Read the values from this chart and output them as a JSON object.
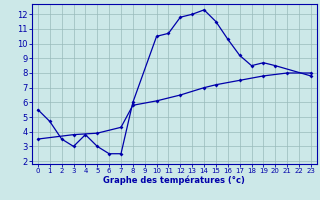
{
  "xlabel": "Graphe des températures (°c)",
  "bg_color": "#cce8e8",
  "line_color": "#0000aa",
  "grid_color": "#99bbbb",
  "xlim": [
    -0.5,
    23.5
  ],
  "ylim": [
    1.8,
    12.7
  ],
  "xticks": [
    0,
    1,
    2,
    3,
    4,
    5,
    6,
    7,
    8,
    9,
    10,
    11,
    12,
    13,
    14,
    15,
    16,
    17,
    18,
    19,
    20,
    21,
    22,
    23
  ],
  "yticks": [
    2,
    3,
    4,
    5,
    6,
    7,
    8,
    9,
    10,
    11,
    12
  ],
  "curve1_x": [
    0,
    1,
    2,
    3,
    4,
    5,
    6,
    7,
    8,
    10,
    11,
    12,
    13,
    14,
    15,
    16,
    17,
    18,
    19,
    20,
    23
  ],
  "curve1_y": [
    5.5,
    4.7,
    3.5,
    3.0,
    3.8,
    3.0,
    2.5,
    2.5,
    6.0,
    10.5,
    10.7,
    11.8,
    12.0,
    12.3,
    11.5,
    10.3,
    9.2,
    8.5,
    8.7,
    8.5,
    7.8
  ],
  "curve2_x": [
    0,
    3,
    5,
    7,
    8,
    10,
    12,
    14,
    15,
    17,
    19,
    21,
    23
  ],
  "curve2_y": [
    3.5,
    3.8,
    3.9,
    4.3,
    5.8,
    6.1,
    6.5,
    7.0,
    7.2,
    7.5,
    7.8,
    8.0,
    8.0
  ]
}
